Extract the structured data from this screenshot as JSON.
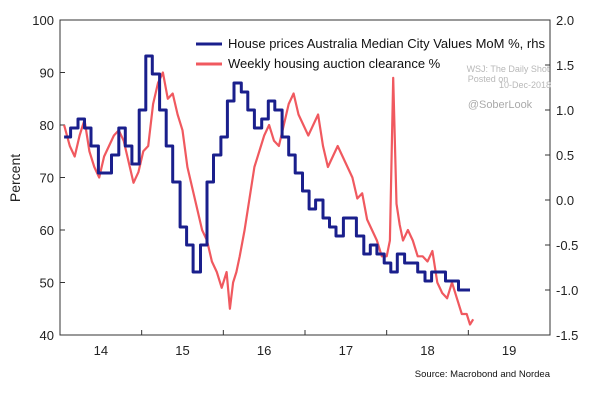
{
  "chart_data": {
    "type": "line",
    "title": "",
    "ylabel": "Percent",
    "ylabel_right": "",
    "xlim": [
      13.5,
      19.5
    ],
    "ylim_left": [
      40,
      100
    ],
    "ylim_right": [
      -1.5,
      2.0
    ],
    "x_ticks": [
      14,
      15,
      16,
      17,
      18,
      19
    ],
    "x_tick_labels": [
      "14",
      "15",
      "16",
      "17",
      "18",
      "19"
    ],
    "y_left_ticks": [
      40,
      50,
      60,
      70,
      80,
      90,
      100
    ],
    "y_left_tick_labels": [
      "40",
      "50",
      "60",
      "70",
      "80",
      "90",
      "100"
    ],
    "y_right_ticks": [
      -1.5,
      -1.0,
      -0.5,
      0.0,
      0.5,
      1.0,
      1.5,
      2.0
    ],
    "y_right_tick_labels": [
      "-1.5",
      "-1.0",
      "-0.5",
      "0.0",
      "0.5",
      "1.0",
      "1.5",
      "2.0"
    ],
    "legend_position": "top-right",
    "grid": false,
    "series": [
      {
        "name": "House prices Australia Median City Values MoM %, rhs",
        "axis": "right",
        "color": "#1a1f8c",
        "step": true,
        "x": [
          13.55,
          13.63,
          13.72,
          13.8,
          13.88,
          13.97,
          14.05,
          14.13,
          14.22,
          14.3,
          14.38,
          14.47,
          14.55,
          14.63,
          14.72,
          14.8,
          14.88,
          14.97,
          15.05,
          15.13,
          15.22,
          15.3,
          15.38,
          15.47,
          15.55,
          15.63,
          15.72,
          15.8,
          15.88,
          15.97,
          16.05,
          16.13,
          16.22,
          16.3,
          16.38,
          16.47,
          16.55,
          16.63,
          16.72,
          16.8,
          16.88,
          16.97,
          17.05,
          17.13,
          17.22,
          17.3,
          17.38,
          17.47,
          17.55,
          17.63,
          17.72,
          17.8,
          17.88,
          17.97,
          18.05,
          18.13,
          18.22,
          18.3,
          18.38,
          18.47
        ],
        "y": [
          0.7,
          0.8,
          0.9,
          0.8,
          0.6,
          0.3,
          0.3,
          0.5,
          0.8,
          0.6,
          0.4,
          1.0,
          1.6,
          1.4,
          1.0,
          0.6,
          0.2,
          -0.3,
          -0.5,
          -0.8,
          -0.5,
          0.2,
          0.5,
          0.7,
          1.1,
          1.3,
          1.2,
          1.0,
          0.8,
          0.9,
          1.1,
          1.0,
          0.7,
          0.5,
          0.3,
          0.1,
          -0.1,
          0.0,
          -0.2,
          -0.3,
          -0.4,
          -0.2,
          -0.2,
          -0.4,
          -0.6,
          -0.5,
          -0.6,
          -0.7,
          -0.8,
          -0.6,
          -0.7,
          -0.7,
          -0.8,
          -0.9,
          -0.8,
          -0.8,
          -0.9,
          -0.9,
          -1.0,
          -1.0
        ]
      },
      {
        "name": "Weekly housing auction clearance %",
        "axis": "left",
        "color": "#f0595f",
        "step": false,
        "x": [
          13.55,
          13.62,
          13.68,
          13.74,
          13.8,
          13.86,
          13.92,
          13.98,
          14.04,
          14.1,
          14.16,
          14.22,
          14.28,
          14.34,
          14.4,
          14.46,
          14.52,
          14.58,
          14.64,
          14.7,
          14.76,
          14.82,
          14.88,
          14.94,
          15.0,
          15.06,
          15.12,
          15.18,
          15.24,
          15.3,
          15.36,
          15.42,
          15.48,
          15.54,
          15.58,
          15.62,
          15.66,
          15.7,
          15.76,
          15.82,
          15.88,
          15.94,
          16.0,
          16.06,
          16.12,
          16.18,
          16.24,
          16.3,
          16.36,
          16.42,
          16.48,
          16.54,
          16.6,
          16.66,
          16.72,
          16.78,
          16.84,
          16.9,
          16.96,
          17.02,
          17.08,
          17.14,
          17.2,
          17.26,
          17.32,
          17.38,
          17.44,
          17.5,
          17.54,
          17.58,
          17.62,
          17.66,
          17.7,
          17.76,
          17.82,
          17.88,
          17.94,
          18.0,
          18.06,
          18.12,
          18.18,
          18.24,
          18.3,
          18.36,
          18.42,
          18.48,
          18.52,
          18.56
        ],
        "y": [
          80,
          76,
          74,
          78,
          81,
          75,
          72,
          70,
          74,
          76,
          78,
          79,
          77,
          73,
          69,
          71,
          75,
          76,
          84,
          88,
          90,
          85,
          86,
          82,
          79,
          72,
          68,
          64,
          60,
          58,
          54,
          52,
          49,
          52,
          45,
          50,
          52,
          55,
          60,
          66,
          72,
          75,
          78,
          80,
          77,
          76,
          80,
          84,
          86,
          82,
          80,
          78,
          80,
          82,
          76,
          72,
          74,
          76,
          74,
          72,
          70,
          66,
          67,
          62,
          60,
          58,
          55,
          55,
          58,
          89,
          65,
          61,
          58,
          60,
          58,
          55,
          55,
          54,
          56,
          50,
          48,
          47,
          50,
          47,
          44,
          44,
          42,
          43
        ]
      }
    ],
    "annotations": {
      "watermark_lines": [
        "Posted on",
        "WSJ: The Daily Shot",
        "10-Dec-2018"
      ],
      "handle": "@SoberLook",
      "source": "Source: Macrobond and Nordea"
    }
  }
}
